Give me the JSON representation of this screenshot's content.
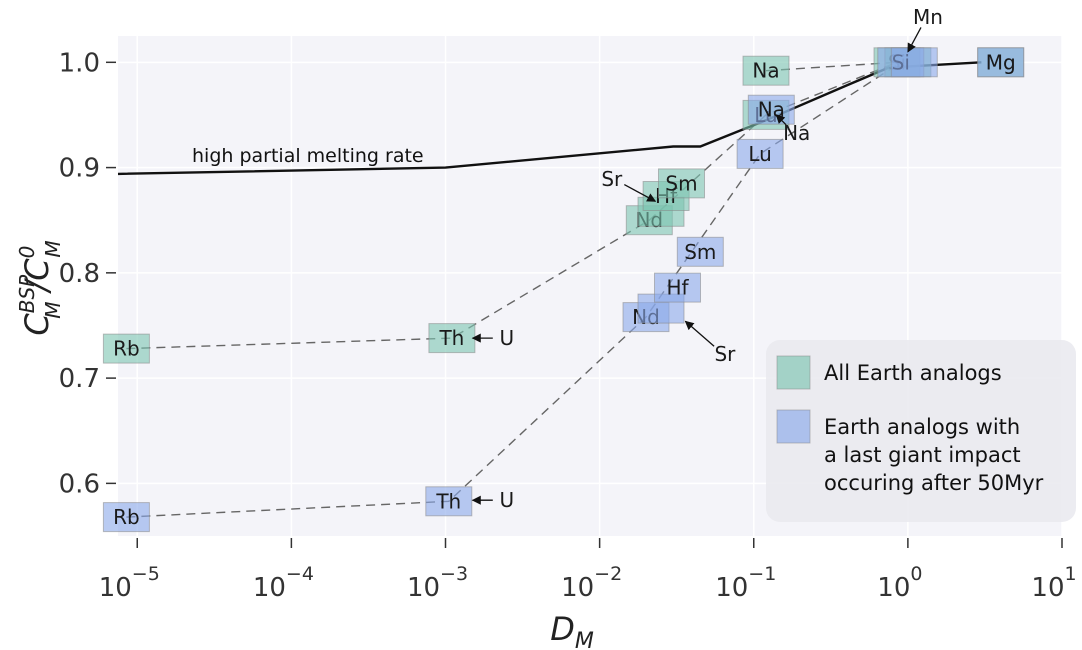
{
  "chart_data": {
    "type": "scatter",
    "x_scale": "log",
    "xlim": [
      7.5e-06,
      10
    ],
    "ylim": [
      0.55,
      1.025
    ],
    "grid": true,
    "legend_placement": "lower-right",
    "xlabel": {
      "base": "D",
      "sub": "M"
    },
    "ylabel": {
      "num_base": "C",
      "num_sup": "BSP",
      "num_sub": "M",
      "den_base": "C",
      "den_sup": "0",
      "den_sub": "M"
    },
    "x_ticks": [
      {
        "value": 1e-05,
        "base": "10",
        "exp": "−5"
      },
      {
        "value": 0.0001,
        "base": "10",
        "exp": "−4"
      },
      {
        "value": 0.001,
        "base": "10",
        "exp": "−3"
      },
      {
        "value": 0.01,
        "base": "10",
        "exp": "−2"
      },
      {
        "value": 0.1,
        "base": "10",
        "exp": "−1"
      },
      {
        "value": 1,
        "base": "10",
        "exp": "0"
      },
      {
        "value": 10,
        "base": "10",
        "exp": "1"
      }
    ],
    "y_ticks": [
      {
        "value": 0.6,
        "label": "0.6"
      },
      {
        "value": 0.7,
        "label": "0.7"
      },
      {
        "value": 0.8,
        "label": "0.8"
      },
      {
        "value": 0.9,
        "label": "0.9"
      },
      {
        "value": 1.0,
        "label": "1.0"
      }
    ],
    "colors": {
      "all": "#7cc5b0",
      "late": "#8ba9ea",
      "melt_line": "#111111",
      "dash": "#666666",
      "plot_bg": "#f4f4f9",
      "grid": "#ffffff",
      "legend_bg": "#e9e9ee"
    },
    "series": [
      {
        "name": "All Earth analogs",
        "key": "all",
        "points": [
          {
            "label": "Rb",
            "x": 8.5e-06,
            "y": 0.728
          },
          {
            "label": "Th",
            "x": 0.0011,
            "y": 0.738
          },
          {
            "label": "Nd",
            "x": 0.021,
            "y": 0.85
          },
          {
            "label": "Sr",
            "x": 0.025,
            "y": 0.858
          },
          {
            "label": "Hf",
            "x": 0.027,
            "y": 0.873
          },
          {
            "label": "Sm",
            "x": 0.034,
            "y": 0.885
          },
          {
            "label": "Lu",
            "x": 0.12,
            "y": 0.95
          },
          {
            "label": "Na",
            "x": 0.12,
            "y": 0.992
          },
          {
            "label": "Si",
            "x": 0.85,
            "y": 1.0
          },
          {
            "label": "Mn",
            "x": 1.0,
            "y": 1.0
          },
          {
            "label": "Mg",
            "x": 4.0,
            "y": 1.0
          }
        ]
      },
      {
        "name": "Earth analogs with a last giant impact occuring after 50Myr",
        "key": "late",
        "points": [
          {
            "label": "Rb",
            "x": 8.5e-06,
            "y": 0.568
          },
          {
            "label": "Th",
            "x": 0.00105,
            "y": 0.583
          },
          {
            "label": "Nd",
            "x": 0.02,
            "y": 0.758
          },
          {
            "label": "Sr",
            "x": 0.025,
            "y": 0.766
          },
          {
            "label": "Hf",
            "x": 0.032,
            "y": 0.786
          },
          {
            "label": "Sm",
            "x": 0.045,
            "y": 0.82
          },
          {
            "label": "Lu",
            "x": 0.11,
            "y": 0.913
          },
          {
            "label": "Na",
            "x": 0.13,
            "y": 0.955
          },
          {
            "label": "Si",
            "x": 0.9,
            "y": 1.0
          },
          {
            "label": "Mn",
            "x": 1.1,
            "y": 1.0
          },
          {
            "label": "Mg",
            "x": 4.0,
            "y": 1.0
          }
        ]
      }
    ],
    "melt_line": {
      "label": "high partial melting rate",
      "points": [
        {
          "x": 7.5e-06,
          "y": 0.894
        },
        {
          "x": 0.001,
          "y": 0.9
        },
        {
          "x": 0.03,
          "y": 0.92
        },
        {
          "x": 0.045,
          "y": 0.92
        },
        {
          "x": 0.12,
          "y": 0.945
        },
        {
          "x": 0.4,
          "y": 0.978
        },
        {
          "x": 0.75,
          "y": 0.995
        },
        {
          "x": 3.0,
          "y": 1.0
        }
      ]
    },
    "dashed_lines": [
      {
        "key": "all",
        "points": [
          [
            8.5e-06,
            0.728
          ],
          [
            0.0011,
            0.738
          ],
          [
            0.021,
            0.85
          ],
          [
            0.12,
            0.95
          ],
          [
            0.85,
            1.0
          ]
        ]
      },
      {
        "key": "all",
        "points": [
          [
            0.12,
            0.992
          ],
          [
            0.85,
            1.0
          ]
        ]
      },
      {
        "key": "late",
        "points": [
          [
            8.5e-06,
            0.568
          ],
          [
            0.00105,
            0.583
          ],
          [
            0.02,
            0.758
          ],
          [
            0.11,
            0.913
          ],
          [
            0.9,
            1.0
          ]
        ]
      }
    ],
    "annotations": [
      {
        "text": "Mn",
        "text_x": 1.35,
        "text_y": 1.043,
        "arrow_to": [
          1.0,
          1.01
        ]
      },
      {
        "text": "Na",
        "text_x": 0.19,
        "text_y": 0.933,
        "arrow_to": [
          0.14,
          0.95
        ]
      },
      {
        "text": "Sr",
        "text_x": 0.012,
        "text_y": 0.889,
        "arrow_to": [
          0.023,
          0.868
        ]
      },
      {
        "text": "Sr",
        "text_x": 0.065,
        "text_y": 0.723,
        "arrow_to": [
          0.036,
          0.754
        ]
      },
      {
        "text": "U",
        "text_x": 0.0025,
        "text_y": 0.738,
        "arrow_to": [
          0.0015,
          0.738
        ]
      },
      {
        "text": "U",
        "text_x": 0.0025,
        "text_y": 0.584,
        "arrow_to": [
          0.0015,
          0.584
        ]
      }
    ],
    "legend": [
      {
        "key": "all",
        "lines": [
          "All Earth analogs"
        ]
      },
      {
        "key": "late",
        "lines": [
          "Earth analogs with",
          "a last giant impact",
          "occuring after 50Myr"
        ]
      }
    ]
  }
}
